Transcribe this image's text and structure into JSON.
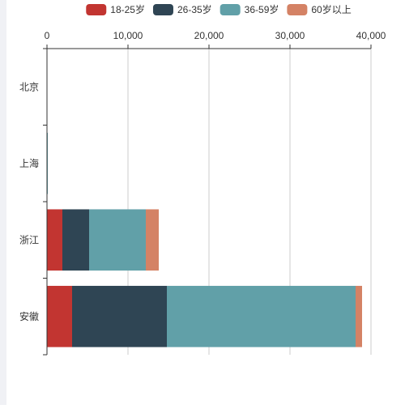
{
  "chart_data": {
    "type": "bar",
    "orientation": "horizontal",
    "stacked": true,
    "categories": [
      "北京",
      "上海",
      "浙江",
      "安徽"
    ],
    "series": [
      {
        "name": "18-25岁",
        "color": "#c23531",
        "values": [
          0,
          0,
          1900,
          3100
        ]
      },
      {
        "name": "26-35岁",
        "color": "#2f4554",
        "values": [
          0,
          0,
          3300,
          11700
        ]
      },
      {
        "name": "36-59岁",
        "color": "#61a0a8",
        "values": [
          0,
          100,
          7000,
          23300
        ]
      },
      {
        "name": "60岁以上",
        "color": "#d48265",
        "values": [
          0,
          0,
          1600,
          800
        ]
      }
    ],
    "xlim": [
      0,
      40000
    ],
    "x_ticks": [
      "0",
      "10,000",
      "20,000",
      "30,000",
      "40,000"
    ],
    "x_tick_values": [
      0,
      10000,
      20000,
      30000,
      40000
    ],
    "axis_position": "top",
    "grid": true,
    "legend_position": "top-center"
  }
}
